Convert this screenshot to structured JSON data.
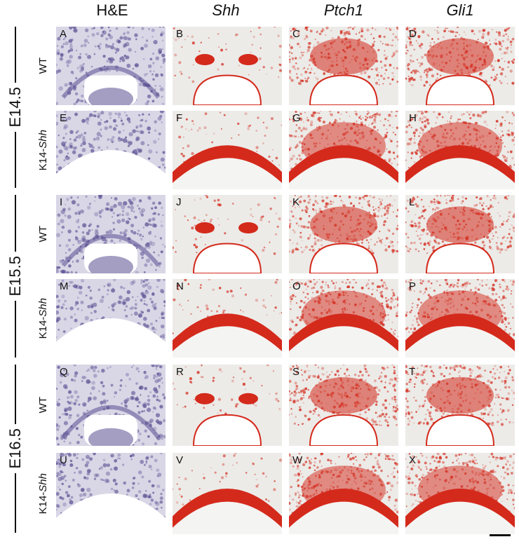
{
  "columns": [
    {
      "label": "H&E",
      "italic": false
    },
    {
      "label": "Shh",
      "italic": true
    },
    {
      "label": "Ptch1",
      "italic": true
    },
    {
      "label": "Gli1",
      "italic": true
    }
  ],
  "stages": [
    "E14.5",
    "E15.5",
    "E16.5"
  ],
  "rows": [
    {
      "genotype": "WT",
      "genotype_suffix": "",
      "letters": [
        "A",
        "B",
        "C",
        "D"
      ]
    },
    {
      "genotype": "K14-",
      "genotype_suffix": "Shh",
      "letters": [
        "E",
        "F",
        "G",
        "H"
      ]
    },
    {
      "genotype": "WT",
      "genotype_suffix": "",
      "letters": [
        "I",
        "J",
        "K",
        "L"
      ]
    },
    {
      "genotype": "K14-",
      "genotype_suffix": "Shh",
      "letters": [
        "M",
        "N",
        "O",
        "P"
      ]
    },
    {
      "genotype": "WT",
      "genotype_suffix": "",
      "letters": [
        "Q",
        "R",
        "S",
        "T"
      ]
    },
    {
      "genotype": "K14-",
      "genotype_suffix": "Shh",
      "letters": [
        "U",
        "V",
        "W",
        "X"
      ]
    }
  ],
  "colors": {
    "he_stain": "#5a4f92",
    "in_situ_red": "#d42a1c",
    "tissue": "#e9e9e7"
  }
}
